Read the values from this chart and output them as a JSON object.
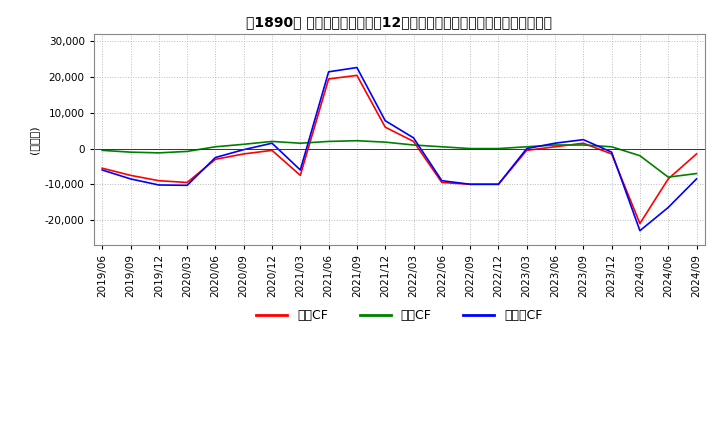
{
  "title": "［1890］ キャッシュフローの12か月移動合計の対前年同期増減額の推移",
  "ylabel": "(百万円)",
  "ylim": [
    -27000,
    32000
  ],
  "yticks": [
    -20000,
    -10000,
    0,
    10000,
    20000,
    30000
  ],
  "legend": [
    "営業CF",
    "投資CF",
    "フリーCF"
  ],
  "legend_colors": [
    "#ff0000",
    "#008000",
    "#0000ff"
  ],
  "x_labels": [
    "2019/06",
    "2019/09",
    "2019/12",
    "2020/03",
    "2020/06",
    "2020/09",
    "2020/12",
    "2021/03",
    "2021/06",
    "2021/09",
    "2021/12",
    "2022/03",
    "2022/06",
    "2022/09",
    "2022/12",
    "2023/03",
    "2023/06",
    "2023/09",
    "2023/12",
    "2024/03",
    "2024/06",
    "2024/09"
  ],
  "営業CF": [
    -5500,
    -7500,
    -9000,
    -9500,
    -3000,
    -1500,
    -500,
    -7500,
    19500,
    20500,
    6000,
    2000,
    -9500,
    -10000,
    -10000,
    -500,
    500,
    1500,
    -1500,
    -21000,
    -8500,
    -1500
  ],
  "投資CF": [
    -500,
    -1000,
    -1200,
    -800,
    500,
    1200,
    2000,
    1500,
    2000,
    2200,
    1800,
    1000,
    500,
    0,
    0,
    500,
    1000,
    1000,
    500,
    -2000,
    -8000,
    -7000
  ],
  "フリーCF": [
    -6000,
    -8500,
    -10200,
    -10300,
    -2500,
    -300,
    1500,
    -6000,
    21500,
    22700,
    7800,
    3000,
    -9000,
    -10000,
    -10000,
    0,
    1500,
    2500,
    -1000,
    -23000,
    -16500,
    -8500
  ],
  "background_color": "#ffffff",
  "grid_color": "#bbbbbb"
}
